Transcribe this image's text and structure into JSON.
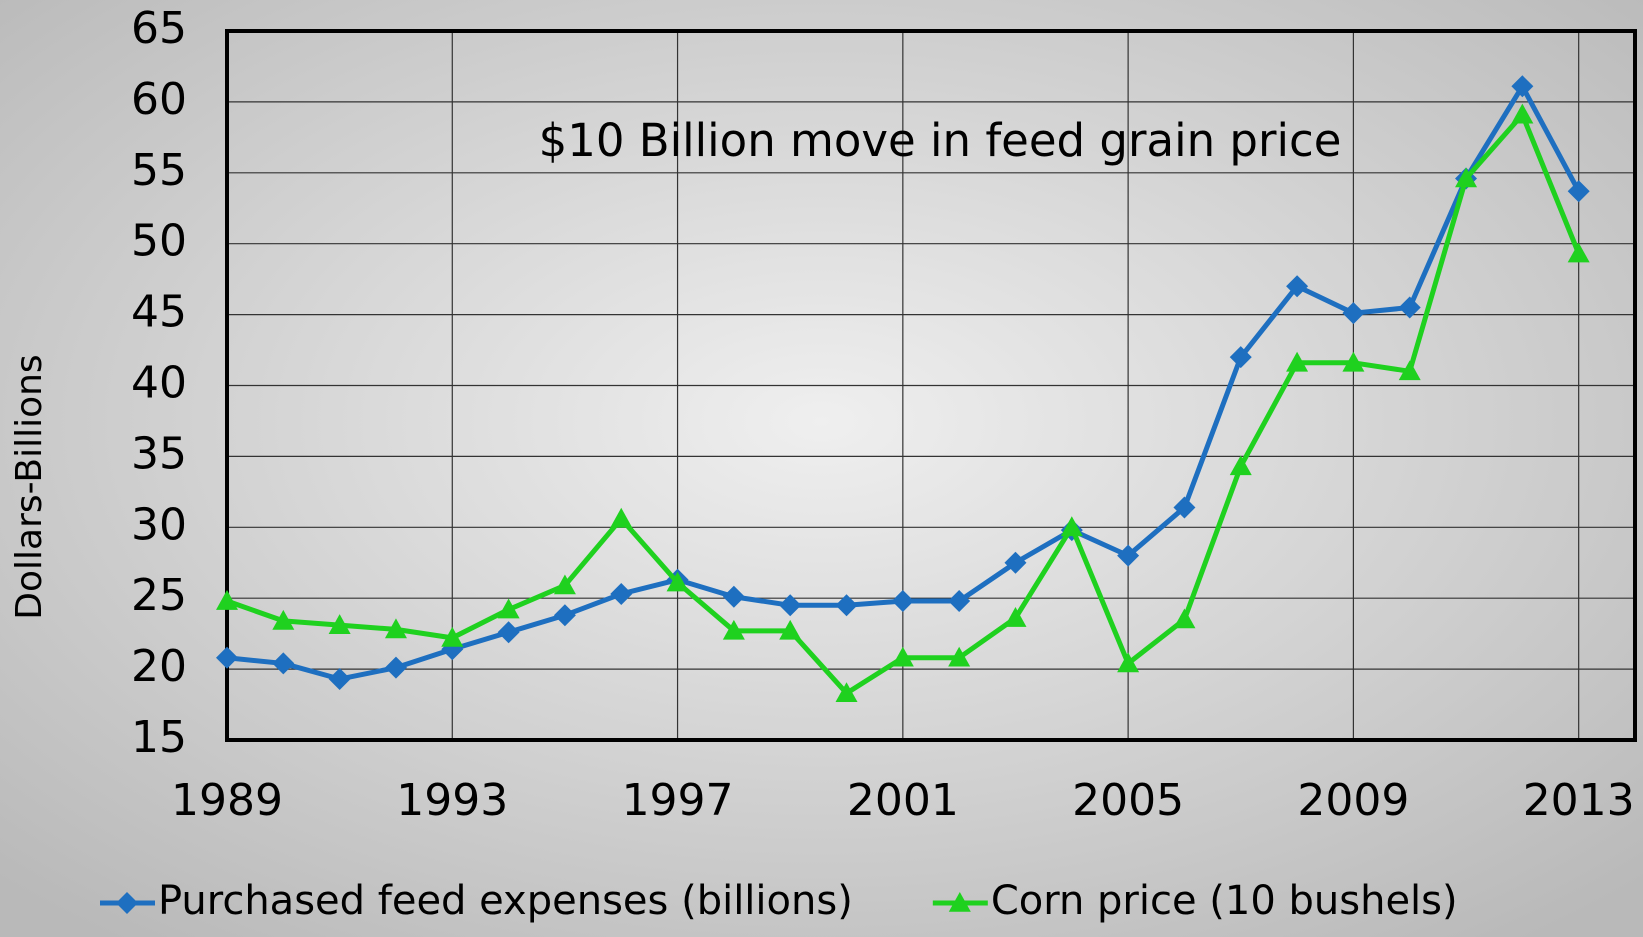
{
  "chart_data": {
    "type": "line",
    "annotation": "$10 Billion move in feed grain price",
    "y_label": "Dollars-Billions",
    "x": [
      1989,
      1990,
      1991,
      1992,
      1993,
      1994,
      1995,
      1996,
      1997,
      1998,
      1999,
      2000,
      2001,
      2002,
      2003,
      2004,
      2005,
      2006,
      2007,
      2008,
      2009,
      2010,
      2011,
      2012,
      2013
    ],
    "series": [
      {
        "name": "Purchased feed expenses (billions)",
        "color": "#1e6fc0",
        "marker": "diamond",
        "values": [
          20.8,
          20.4,
          19.3,
          20.1,
          21.4,
          22.6,
          23.8,
          25.3,
          26.3,
          25.1,
          24.5,
          24.5,
          24.8,
          24.8,
          27.5,
          29.8,
          28.0,
          31.4,
          42.0,
          47.0,
          45.1,
          45.5,
          54.6,
          61.1,
          53.7
        ]
      },
      {
        "name": "Corn price (10 bushels)",
        "color": "#1fd11f",
        "marker": "triangle",
        "values": [
          24.8,
          23.4,
          23.1,
          22.8,
          22.2,
          24.2,
          25.9,
          30.6,
          26.1,
          22.7,
          22.7,
          18.3,
          20.8,
          20.8,
          23.6,
          30.0,
          20.4,
          23.5,
          34.3,
          41.6,
          41.6,
          41.0,
          54.6,
          59.1,
          49.3
        ]
      }
    ],
    "xlim": [
      1989,
      2014
    ],
    "xticks": [
      1989,
      1993,
      1997,
      2001,
      2005,
      2009,
      2013
    ],
    "ylim": [
      15,
      65
    ],
    "yticks": [
      15,
      20,
      25,
      30,
      35,
      40,
      45,
      50,
      55,
      60,
      65
    ],
    "grid": true,
    "legend": "bottom"
  }
}
